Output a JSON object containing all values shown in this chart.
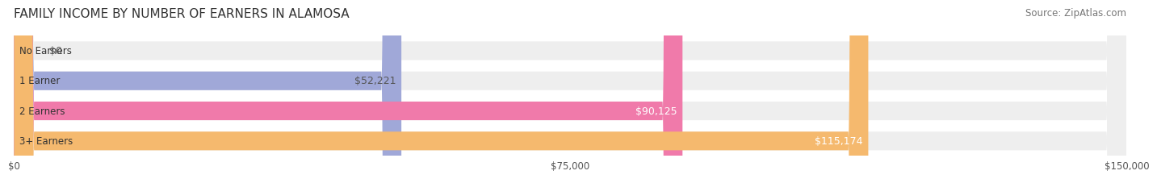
{
  "title": "FAMILY INCOME BY NUMBER OF EARNERS IN ALAMOSA",
  "source": "Source: ZipAtlas.com",
  "categories": [
    "No Earners",
    "1 Earner",
    "2 Earners",
    "3+ Earners"
  ],
  "values": [
    0,
    52221,
    90125,
    115174
  ],
  "labels": [
    "$0",
    "$52,221",
    "$90,125",
    "$115,174"
  ],
  "bar_colors": [
    "#6dd4d4",
    "#a0a8d8",
    "#f07aaa",
    "#f5b96e"
  ],
  "bar_bg_color": "#eeeeee",
  "label_colors": [
    "#555555",
    "#555555",
    "#ffffff",
    "#ffffff"
  ],
  "xlim": [
    0,
    150000
  ],
  "xticks": [
    0,
    75000,
    150000
  ],
  "xtick_labels": [
    "$0",
    "$75,000",
    "$150,000"
  ],
  "title_fontsize": 11,
  "source_fontsize": 8.5,
  "bar_label_fontsize": 9,
  "category_fontsize": 8.5,
  "tick_fontsize": 8.5,
  "fig_bg_color": "#ffffff",
  "bar_height": 0.62,
  "bar_bg_rounding": 0.3
}
